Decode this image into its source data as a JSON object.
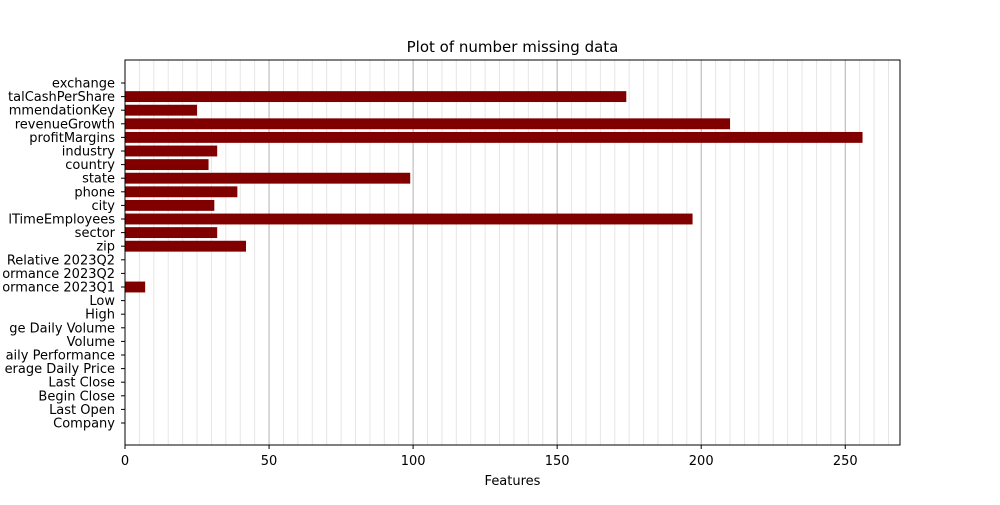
{
  "chart_data": {
    "type": "bar",
    "orientation": "horizontal",
    "title": "Plot of number missing data",
    "xlabel": "Features",
    "ylabel": "",
    "xlim": [
      0,
      269
    ],
    "x_ticks": [
      0,
      50,
      100,
      150,
      200,
      250
    ],
    "x_tick_labels": [
      "0",
      "50",
      "100",
      "150",
      "200",
      "250"
    ],
    "grid": "vertical major and minor",
    "legend": "none",
    "bar_color": "#800000",
    "categories": [
      "Company",
      "Last Open",
      "Begin Close",
      "Last Close",
      "erage Daily Price",
      "aily Performance",
      "Volume",
      "ge Daily Volume",
      "High",
      "Low",
      "ormance 2023Q1",
      "ormance 2023Q2",
      "Relative 2023Q2",
      "zip",
      "sector",
      "lTimeEmployees",
      "city",
      "phone",
      "state",
      "country",
      "industry",
      "profitMargins",
      "revenueGrowth",
      "mmendationKey",
      "talCashPerShare",
      "exchange"
    ],
    "values": [
      0,
      0,
      0,
      0,
      0,
      0,
      0,
      0,
      0,
      0,
      7,
      0,
      0,
      42,
      32,
      197,
      31,
      39,
      99,
      29,
      32,
      256,
      210,
      25,
      174,
      0
    ]
  }
}
